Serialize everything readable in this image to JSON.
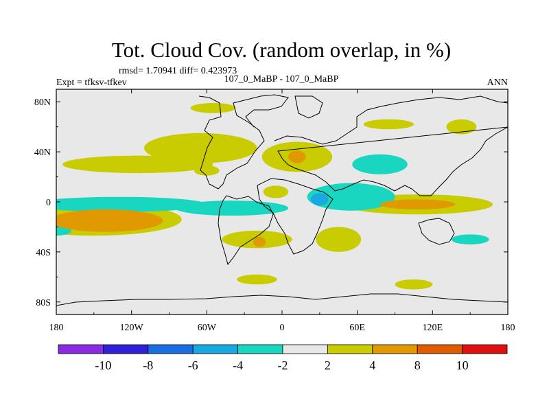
{
  "chart_data": {
    "type": "heatmap",
    "title": "Tot. Cloud Cov. (random overlap, in %)",
    "stats": "rmsd= 1.70941  diff= 0.423973",
    "left_label": "Expt = tfksv-tfkev",
    "center_label": "107_0_MaBP - 107_0_MaBP",
    "right_label": "ANN",
    "x_ticks": [
      {
        "lon": -180,
        "label": "180"
      },
      {
        "lon": -120,
        "label": "120W"
      },
      {
        "lon": -60,
        "label": "60W"
      },
      {
        "lon": 0,
        "label": "0"
      },
      {
        "lon": 60,
        "label": "60E"
      },
      {
        "lon": 120,
        "label": "120E"
      },
      {
        "lon": 180,
        "label": "180"
      }
    ],
    "y_ticks": [
      {
        "lat": 80,
        "label": "80N"
      },
      {
        "lat": 40,
        "label": "40N"
      },
      {
        "lat": 0,
        "label": "0"
      },
      {
        "lat": -40,
        "label": "40S"
      },
      {
        "lat": -80,
        "label": "80S"
      }
    ],
    "xlim": [
      -180,
      180
    ],
    "ylim": [
      -90,
      90
    ],
    "colorbar": {
      "levels": [
        "-10",
        "-8",
        "-6",
        "-4",
        "-2",
        "2",
        "4",
        "8",
        "10"
      ],
      "colors": [
        "#8a2be2",
        "#3020d8",
        "#1a6ee0",
        "#17a9e0",
        "#19d6c0",
        "#e8e8e8",
        "#c8cc00",
        "#e09a00",
        "#e05a00",
        "#e01010"
      ]
    },
    "anomalies": [
      {
        "lon": -140,
        "lat": -15,
        "rx": 45,
        "ry": 9,
        "band": "4 to 8"
      },
      {
        "lon": -150,
        "lat": -14,
        "rx": 70,
        "ry": 13,
        "band": "2 to 4"
      },
      {
        "lon": -115,
        "lat": 30,
        "rx": 60,
        "ry": 7,
        "band": "2 to 4"
      },
      {
        "lon": -65,
        "lat": 43,
        "rx": 45,
        "ry": 12,
        "band": "2 to 4"
      },
      {
        "lon": 12,
        "lat": 36,
        "rx": 28,
        "ry": 12,
        "band": "2 to 4"
      },
      {
        "lon": 12,
        "lat": 36,
        "rx": 7,
        "ry": 5,
        "band": "4 to 8"
      },
      {
        "lon": -130,
        "lat": -2,
        "rx": 70,
        "ry": 6,
        "band": "-4 to -2"
      },
      {
        "lon": -40,
        "lat": -5,
        "rx": 45,
        "ry": 6,
        "band": "-4 to -2"
      },
      {
        "lon": 55,
        "lat": 4,
        "rx": 35,
        "ry": 11,
        "band": "-4 to -2"
      },
      {
        "lon": 30,
        "lat": 2,
        "rx": 7,
        "ry": 5,
        "band": "-6 to -4"
      },
      {
        "lon": 78,
        "lat": 30,
        "rx": 22,
        "ry": 8,
        "band": "-4 to -2"
      },
      {
        "lon": 108,
        "lat": -2,
        "rx": 60,
        "ry": 8,
        "band": "2 to 4"
      },
      {
        "lon": 108,
        "lat": -2,
        "rx": 30,
        "ry": 4,
        "band": "4 to 8"
      },
      {
        "lon": -20,
        "lat": -30,
        "rx": 28,
        "ry": 7,
        "band": "2 to 4"
      },
      {
        "lon": -18,
        "lat": -32,
        "rx": 5,
        "ry": 4,
        "band": "4 to 8"
      },
      {
        "lon": 45,
        "lat": -30,
        "rx": 18,
        "ry": 10,
        "band": "2 to 4"
      },
      {
        "lon": -180,
        "lat": -23,
        "rx": 12,
        "ry": 4,
        "band": "-4 to -2"
      },
      {
        "lon": 150,
        "lat": -30,
        "rx": 15,
        "ry": 4,
        "band": "-4 to -2"
      },
      {
        "lon": -55,
        "lat": 75,
        "rx": 18,
        "ry": 4,
        "band": "2 to 4"
      },
      {
        "lon": 143,
        "lat": 60,
        "rx": 12,
        "ry": 6,
        "band": "2 to 4"
      },
      {
        "lon": 85,
        "lat": 62,
        "rx": 20,
        "ry": 4,
        "band": "2 to 4"
      },
      {
        "lon": -20,
        "lat": -62,
        "rx": 16,
        "ry": 4,
        "band": "2 to 4"
      },
      {
        "lon": 105,
        "lat": -66,
        "rx": 15,
        "ry": 4,
        "band": "2 to 4"
      },
      {
        "lon": -60,
        "lat": 25,
        "rx": 10,
        "ry": 4,
        "band": "2 to 4"
      },
      {
        "lon": -5,
        "lat": 8,
        "rx": 10,
        "ry": 5,
        "band": "2 to 4"
      }
    ]
  }
}
